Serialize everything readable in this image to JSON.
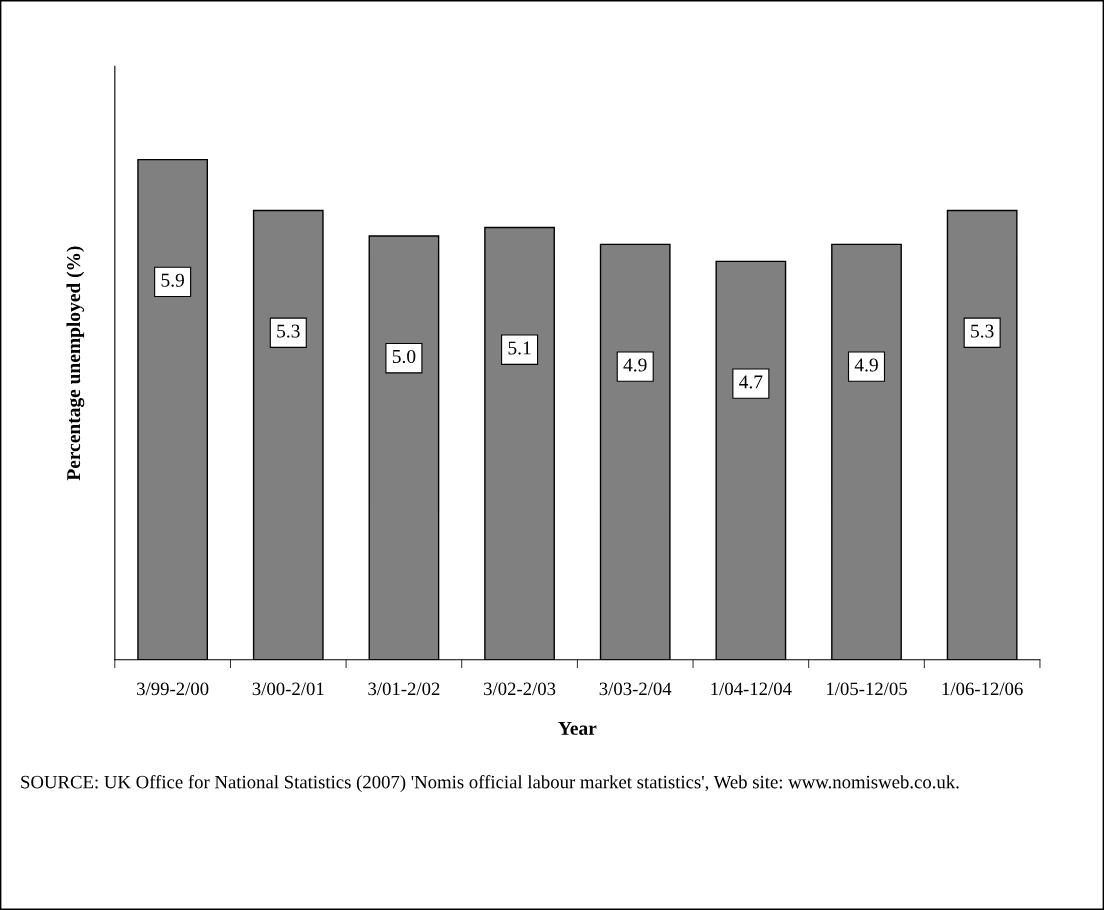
{
  "chart_data": {
    "type": "bar",
    "xlabel": "Year",
    "ylabel": "Percentage unemployed (%)",
    "categories": [
      "3/99-2/00",
      "3/00-2/01",
      "3/01-2/02",
      "3/02-2/03",
      "3/03-2/04",
      "1/04-12/04",
      "1/05-12/05",
      "1/06-12/06"
    ],
    "values": [
      5.9,
      5.3,
      5.0,
      5.1,
      4.9,
      4.7,
      4.9,
      5.3
    ],
    "color": "#808080",
    "ylim": [
      0,
      7
    ],
    "tick_labels": "x",
    "value_labels": [
      "5.9",
      "5.3",
      "5.0",
      "5.1",
      "4.9",
      "4.7",
      "4.9",
      "5.3"
    ],
    "grid": false,
    "legend": false,
    "annotations": [
      "SOURCE: UK Office for National Statistics (2007) 'Nomis official labour market statistics', Web site: www.nomisweb.co.uk."
    ]
  }
}
